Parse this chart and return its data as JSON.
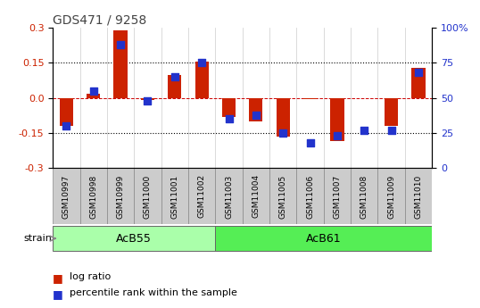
{
  "title": "GDS471 / 9258",
  "samples": [
    "GSM10997",
    "GSM10998",
    "GSM10999",
    "GSM11000",
    "GSM11001",
    "GSM11002",
    "GSM11003",
    "GSM11004",
    "GSM11005",
    "GSM11006",
    "GSM11007",
    "GSM11008",
    "GSM11009",
    "GSM11010"
  ],
  "log_ratio": [
    -0.12,
    0.02,
    0.29,
    -0.01,
    0.1,
    0.155,
    -0.08,
    -0.1,
    -0.165,
    -0.005,
    -0.185,
    0.0,
    -0.12,
    0.13
  ],
  "percentile_rank": [
    30,
    55,
    88,
    48,
    65,
    75,
    35,
    38,
    25,
    18,
    23,
    27,
    27,
    68
  ],
  "groups": [
    {
      "label": "AcB55",
      "start": 0,
      "end": 5,
      "color": "#aaffaa"
    },
    {
      "label": "AcB61",
      "start": 6,
      "end": 13,
      "color": "#55ee55"
    }
  ],
  "ylim": [
    -0.3,
    0.3
  ],
  "right_ylim": [
    0,
    100
  ],
  "bar_color": "#cc2200",
  "dot_color": "#2233cc",
  "hline_color": "#cc0000",
  "bar_width": 0.5,
  "yticks_left": [
    -0.3,
    -0.15,
    0.0,
    0.15,
    0.3
  ],
  "yticks_right": [
    0,
    25,
    50,
    75,
    100
  ],
  "right_ytick_labels": [
    "0",
    "25",
    "50",
    "75",
    "100%"
  ],
  "tick_label_color": "#cc2200",
  "right_tick_label_color": "#2233cc",
  "sample_box_color": "#cccccc",
  "sample_box_edge": "#888888"
}
